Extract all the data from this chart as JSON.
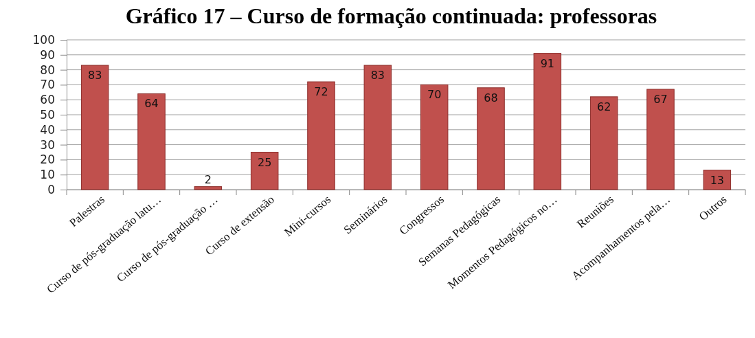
{
  "chart_data": {
    "type": "bar",
    "title": "Gráfico 17 – Curso de formação continuada: professoras",
    "categories": [
      "Palestras",
      "Curso de pós-graduação latu…",
      "Curso de pós-graduação …",
      "Curso de extensão",
      "Mini-cursos",
      "Seminários",
      "Congressos",
      "Semanas Pedagógicas",
      "Momentos Pedagógicos no…",
      "Reuniões",
      "Acompanhamentos pela…",
      "Outros"
    ],
    "values": [
      83,
      64,
      2,
      25,
      72,
      83,
      70,
      68,
      91,
      62,
      67,
      13
    ],
    "color": "#c0504d",
    "ylim": [
      0,
      100
    ],
    "yticks": [
      0,
      10,
      20,
      30,
      40,
      50,
      60,
      70,
      80,
      90,
      100
    ],
    "grid": "y",
    "data_labels": true
  }
}
